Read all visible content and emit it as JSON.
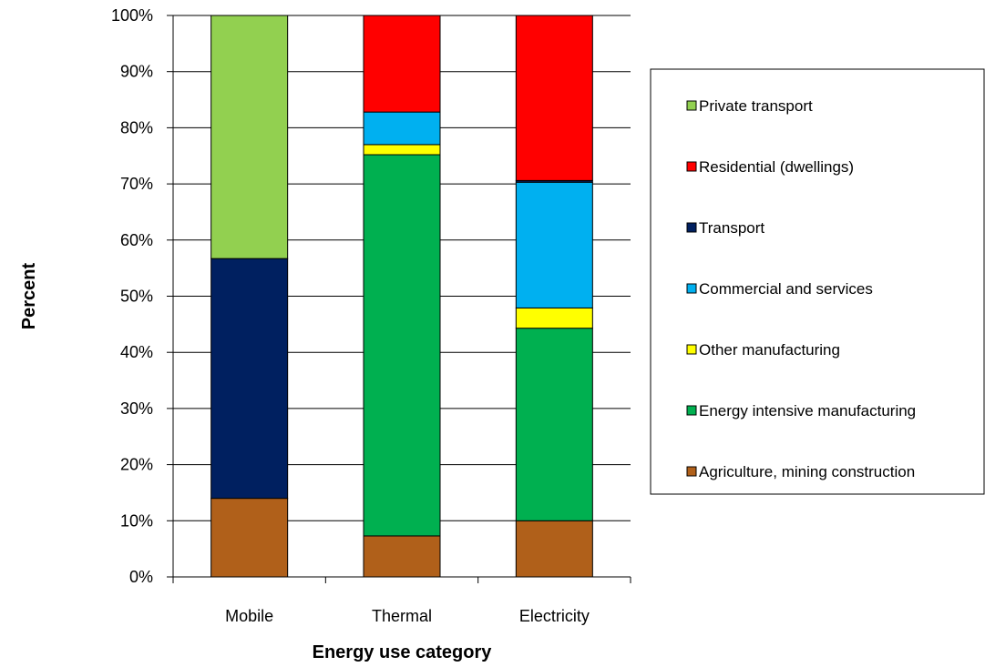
{
  "chart_data": {
    "type": "bar",
    "stacked": true,
    "xlabel": "Energy use category",
    "ylabel": "Percent",
    "ylim": [
      0,
      100
    ],
    "y_tick_format": "percent",
    "y_ticks": [
      0,
      10,
      20,
      30,
      40,
      50,
      60,
      70,
      80,
      90,
      100
    ],
    "grid": "horizontal",
    "legend_position": "right",
    "categories": [
      "Mobile",
      "Thermal",
      "Electricity"
    ],
    "series": [
      {
        "name": "Agriculture, mining construction",
        "color": "#B0601A",
        "values": [
          14,
          7.3,
          10
        ]
      },
      {
        "name": "Energy intensive manufacturing",
        "color": "#00B050",
        "values": [
          0,
          67.9,
          34.3
        ]
      },
      {
        "name": "Other manufacturing",
        "color": "#FFFF00",
        "values": [
          0,
          1.8,
          3.6
        ]
      },
      {
        "name": "Commercial and services",
        "color": "#00B0F0",
        "values": [
          0,
          5.8,
          22.4
        ]
      },
      {
        "name": "Transport",
        "color": "#002060",
        "values": [
          42.7,
          0,
          0.3
        ]
      },
      {
        "name": "Residential (dwellings)",
        "color": "#FF0000",
        "values": [
          0,
          17.2,
          29.4
        ]
      },
      {
        "name": "Private transport",
        "color": "#92D050",
        "values": [
          43.3,
          0,
          0
        ]
      }
    ],
    "legend_order": [
      "Private transport",
      "Residential (dwellings)",
      "Transport",
      "Commercial and services",
      "Other manufacturing",
      "Energy intensive manufacturing",
      "Agriculture, mining construction"
    ]
  }
}
